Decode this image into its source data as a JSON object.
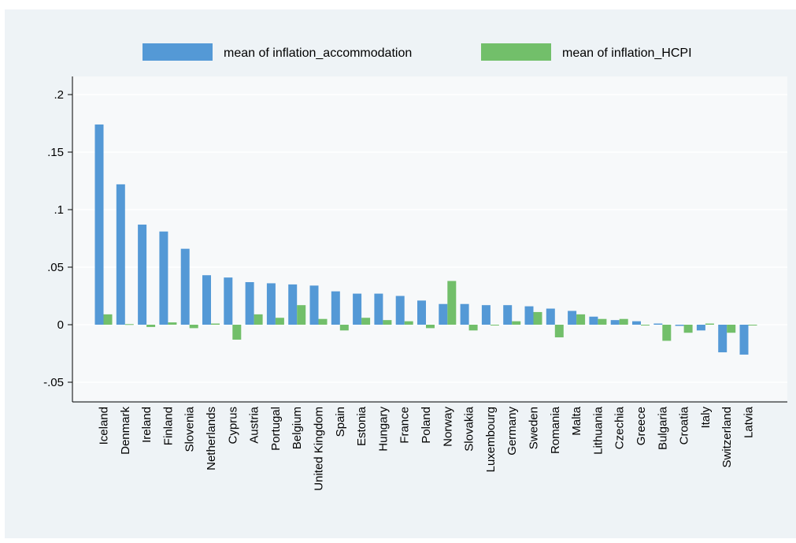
{
  "chart_data": {
    "type": "bar",
    "title": "",
    "xlabel": "",
    "ylabel": "",
    "ylim": [
      -0.07,
      0.215
    ],
    "yticks": [
      -0.05,
      0,
      0.05,
      0.1,
      0.15,
      0.2
    ],
    "ytick_labels": [
      "-.05",
      "0",
      ".05",
      ".1",
      ".15",
      ".2"
    ],
    "grid": true,
    "legend_position": "top",
    "categories": [
      "Iceland",
      "Denmark",
      "Ireland",
      "Finland",
      "Slovenia",
      "Netherlands",
      "Cyprus",
      "Austria",
      "Portugal",
      "Belgium",
      "United Kingdom",
      "Spain",
      "Estonia",
      "Hungary",
      "France",
      "Poland",
      "Norway",
      "Slovakia",
      "Luxembourg",
      "Germany",
      "Sweden",
      "Romania",
      "Malta",
      "Lithuania",
      "Czechia",
      "Greece",
      "Bulgaria",
      "Croatia",
      "Italy",
      "Switzerland",
      "Latvia"
    ],
    "series": [
      {
        "name": "mean of inflation_accommodation",
        "color": "#5499d6",
        "values": [
          0.174,
          0.122,
          0.087,
          0.081,
          0.066,
          0.043,
          0.041,
          0.037,
          0.036,
          0.035,
          0.034,
          0.029,
          0.027,
          0.027,
          0.025,
          0.021,
          0.018,
          0.018,
          0.017,
          0.017,
          0.016,
          0.014,
          0.012,
          0.007,
          0.004,
          0.003,
          0.001,
          -0.001,
          -0.005,
          -0.024,
          -0.026
        ]
      },
      {
        "name": "mean of inflation_HCPI",
        "color": "#72bf6a",
        "values": [
          0.009,
          0.0005,
          -0.002,
          0.002,
          -0.003,
          0.001,
          -0.013,
          0.009,
          0.006,
          0.017,
          0.005,
          -0.005,
          0.006,
          0.004,
          0.003,
          -0.003,
          0.038,
          -0.005,
          -0.0005,
          0.003,
          0.011,
          -0.011,
          0.009,
          0.005,
          0.005,
          -0.0005,
          -0.014,
          -0.007,
          0.001,
          -0.007,
          -0.0005
        ]
      }
    ]
  }
}
